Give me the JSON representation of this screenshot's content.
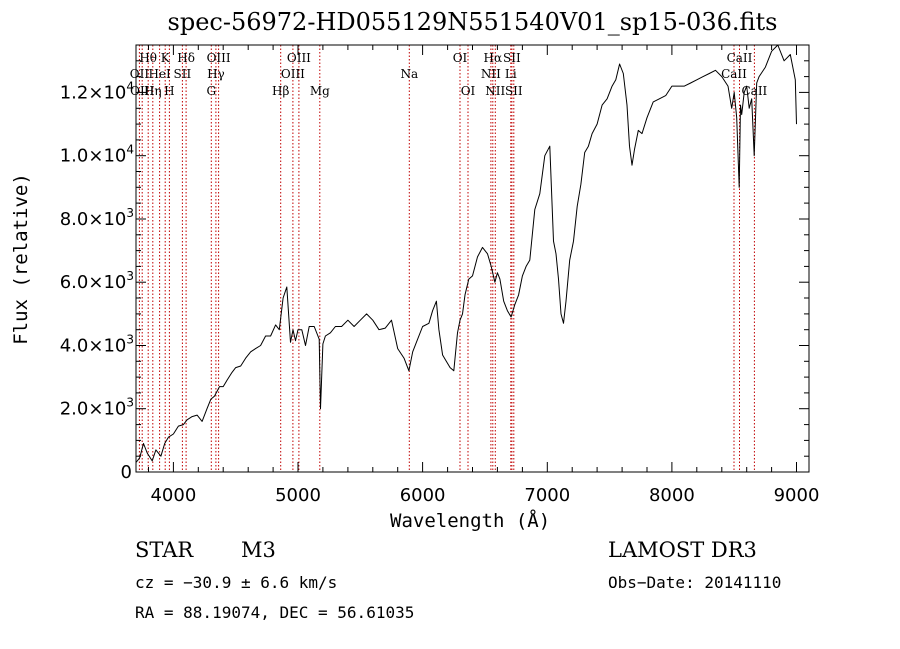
{
  "chart_data": {
    "type": "line",
    "title": "spec-56972-HD055129N551540V01_sp15-036.fits",
    "xlabel": "Wavelength (Å)",
    "ylabel": "Flux (relative)",
    "xlim": [
      3700,
      9100
    ],
    "ylim": [
      0,
      13500
    ],
    "x_ticks": [
      {
        "value": 4000,
        "label": "4000"
      },
      {
        "value": 5000,
        "label": "5000"
      },
      {
        "value": 6000,
        "label": "6000"
      },
      {
        "value": 7000,
        "label": "7000"
      },
      {
        "value": 8000,
        "label": "8000"
      },
      {
        "value": 9000,
        "label": "9000"
      }
    ],
    "y_ticks": [
      {
        "value": 0,
        "mantissa": "0",
        "exp": ""
      },
      {
        "value": 2000,
        "mantissa": "2.0×10",
        "exp": "3"
      },
      {
        "value": 4000,
        "mantissa": "4.0×10",
        "exp": "3"
      },
      {
        "value": 6000,
        "mantissa": "6.0×10",
        "exp": "3"
      },
      {
        "value": 8000,
        "mantissa": "8.0×10",
        "exp": "3"
      },
      {
        "value": 10000,
        "mantissa": "1.0×10",
        "exp": "4"
      },
      {
        "value": 12000,
        "mantissa": "1.2×10",
        "exp": "4"
      }
    ],
    "series": [
      {
        "name": "spectrum",
        "color": "#000000",
        "x": [
          3700,
          3730,
          3760,
          3790,
          3830,
          3860,
          3900,
          3930,
          3960,
          4000,
          4040,
          4080,
          4110,
          4150,
          4190,
          4230,
          4270,
          4300,
          4330,
          4370,
          4400,
          4430,
          4470,
          4500,
          4540,
          4580,
          4620,
          4660,
          4700,
          4740,
          4780,
          4820,
          4850,
          4880,
          4910,
          4940,
          4960,
          4980,
          5000,
          5030,
          5060,
          5090,
          5130,
          5170,
          5180,
          5200,
          5220,
          5260,
          5300,
          5350,
          5400,
          5450,
          5500,
          5550,
          5600,
          5650,
          5700,
          5750,
          5800,
          5850,
          5890,
          5920,
          5950,
          6000,
          6050,
          6080,
          6110,
          6130,
          6160,
          6190,
          6220,
          6250,
          6280,
          6300,
          6320,
          6340,
          6370,
          6400,
          6440,
          6480,
          6520,
          6550,
          6580,
          6600,
          6620,
          6650,
          6680,
          6710,
          6740,
          6770,
          6800,
          6830,
          6860,
          6900,
          6940,
          6980,
          7020,
          7050,
          7070,
          7090,
          7110,
          7130,
          7150,
          7180,
          7210,
          7240,
          7270,
          7300,
          7330,
          7360,
          7400,
          7440,
          7480,
          7520,
          7550,
          7580,
          7610,
          7640,
          7660,
          7680,
          7700,
          7730,
          7760,
          7800,
          7850,
          7900,
          7950,
          8000,
          8050,
          8100,
          8150,
          8200,
          8250,
          8300,
          8350,
          8400,
          8450,
          8480,
          8500,
          8520,
          8540,
          8550,
          8560,
          8580,
          8600,
          8620,
          8640,
          8660,
          8680,
          8700,
          8750,
          8800,
          8850,
          8900,
          8950,
          8990,
          9000
        ],
        "y": [
          300,
          450,
          900,
          600,
          350,
          700,
          500,
          900,
          1100,
          1200,
          1450,
          1500,
          1650,
          1750,
          1800,
          1600,
          2000,
          2300,
          2400,
          2700,
          2700,
          2900,
          3150,
          3300,
          3350,
          3600,
          3800,
          3900,
          4000,
          4300,
          4300,
          4650,
          4500,
          5500,
          5850,
          4100,
          4500,
          4150,
          4500,
          4500,
          4000,
          4600,
          4600,
          4200,
          2000,
          4050,
          4300,
          4400,
          4600,
          4600,
          4800,
          4600,
          4800,
          5000,
          4800,
          4500,
          4550,
          4800,
          3900,
          3600,
          3200,
          3800,
          4100,
          4600,
          4700,
          5100,
          5400,
          4500,
          3700,
          3500,
          3300,
          3200,
          4400,
          4800,
          5000,
          5600,
          6100,
          6200,
          6800,
          7100,
          6900,
          6500,
          6000,
          6300,
          6100,
          5400,
          5100,
          4900,
          5300,
          5600,
          6200,
          6500,
          6700,
          8300,
          8800,
          10000,
          10300,
          7300,
          6900,
          6100,
          5000,
          4700,
          5400,
          6700,
          7300,
          8400,
          9100,
          10100,
          10300,
          10700,
          11000,
          11600,
          11800,
          12200,
          12400,
          12900,
          12600,
          11600,
          10300,
          9700,
          10200,
          10800,
          10700,
          11200,
          11700,
          11800,
          11900,
          12200,
          12200,
          12200,
          12300,
          12400,
          12500,
          12600,
          12700,
          12500,
          12200,
          11500,
          12000,
          11200,
          9000,
          11600,
          11300,
          12000,
          12200,
          11500,
          11800,
          10000,
          12300,
          12500,
          12800,
          13300,
          13500,
          13000,
          13200,
          12400,
          11000
        ]
      }
    ],
    "lines": [
      {
        "wavelength": 3727,
        "label": "OII",
        "row": 1
      },
      {
        "wavelength": 3750,
        "label": "OIII",
        "row": 2
      },
      {
        "wavelength": 3798,
        "label": "Hθ",
        "row": 0
      },
      {
        "wavelength": 3835,
        "label": "Hη",
        "row": 2
      },
      {
        "wavelength": 3889,
        "label": "HeI",
        "row": 1
      },
      {
        "wavelength": 3934,
        "label": "K",
        "row": 0
      },
      {
        "wavelength": 3968,
        "label": "H",
        "row": 2
      },
      {
        "wavelength": 4072,
        "label": "SII",
        "row": 1
      },
      {
        "wavelength": 4102,
        "label": "Hδ",
        "row": 0
      },
      {
        "wavelength": 4304,
        "label": "G",
        "row": 2
      },
      {
        "wavelength": 4341,
        "label": "Hγ",
        "row": 1
      },
      {
        "wavelength": 4363,
        "label": "OIII",
        "row": 0
      },
      {
        "wavelength": 4861,
        "label": "Hβ",
        "row": 2
      },
      {
        "wavelength": 4959,
        "label": "OIII",
        "row": 1
      },
      {
        "wavelength": 5007,
        "label": "OIII",
        "row": 0
      },
      {
        "wavelength": 5175,
        "label": "Mg",
        "row": 2
      },
      {
        "wavelength": 5893,
        "label": "Na",
        "row": 1
      },
      {
        "wavelength": 6300,
        "label": "OI",
        "row": 0
      },
      {
        "wavelength": 6364,
        "label": "OI",
        "row": 2
      },
      {
        "wavelength": 6548,
        "label": "NII",
        "row": 1
      },
      {
        "wavelength": 6563,
        "label": "Hα",
        "row": 0
      },
      {
        "wavelength": 6583,
        "label": "NII",
        "row": 2
      },
      {
        "wavelength": 6707,
        "label": "Li",
        "row": 1
      },
      {
        "wavelength": 6716,
        "label": "SII",
        "row": 0
      },
      {
        "wavelength": 6731,
        "label": "SII",
        "row": 2
      },
      {
        "wavelength": 8498,
        "label": "CaII",
        "row": 1
      },
      {
        "wavelength": 8542,
        "label": "CaII",
        "row": 0
      },
      {
        "wavelength": 8662,
        "label": "CaII",
        "row": 2
      }
    ],
    "line_color": "#c00000"
  },
  "info": {
    "class": "STAR",
    "subclass": "M3",
    "survey": "LAMOST DR3",
    "cz": "cz = −30.9 ± 6.6 km/s",
    "obs_date": "Obs−Date: 20141110",
    "coords": "RA =  88.19074, DEC =  56.61035"
  }
}
